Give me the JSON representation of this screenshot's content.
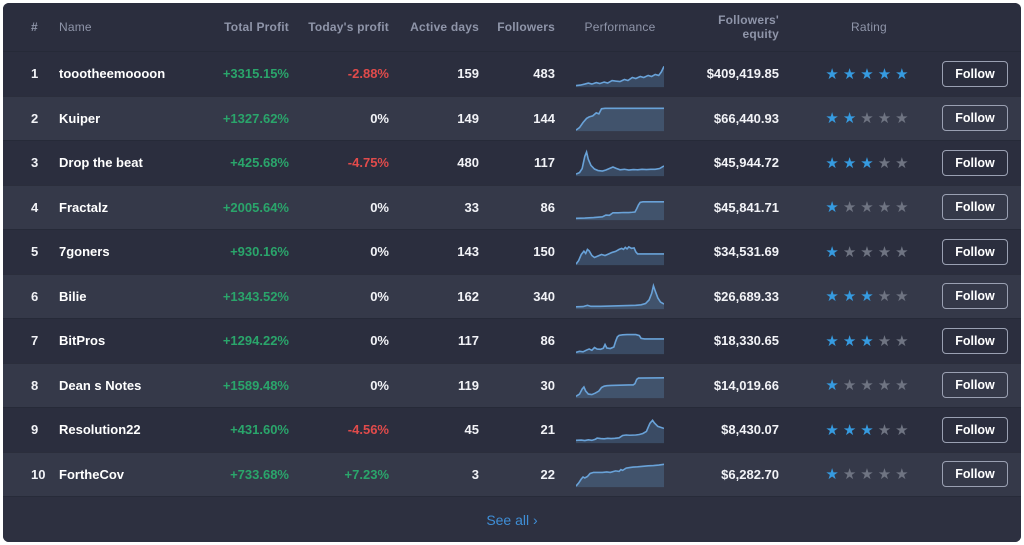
{
  "colors": {
    "panel_dark": "#2b2e3e",
    "row_light": "#353949",
    "green": "#2aa56b",
    "red": "#e14b4b",
    "star_blue": "#369be0",
    "star_gray": "#6f7482",
    "spark_line": "#69a2d8",
    "spark_fill": "#69a2d8",
    "link_blue": "#3f8ed6"
  },
  "table": {
    "columns": [
      "#",
      "Name",
      "Total Profit",
      "Today's profit",
      "Active days",
      "Followers",
      "Performance",
      "Followers' equity",
      "Rating"
    ],
    "follow_label": "Follow",
    "see_all_label": "See all ›",
    "rows": [
      {
        "rank": "1",
        "name": "toootheemoooon",
        "total_profit": "+3315.15%",
        "today_profit": "-2.88%",
        "today_type": "neg",
        "active_days": "159",
        "followers": "483",
        "equity": "$409,419.85",
        "rating": 5,
        "spark": [
          [
            0,
            6
          ],
          [
            5,
            8
          ],
          [
            10,
            12
          ],
          [
            14,
            16
          ],
          [
            18,
            12
          ],
          [
            23,
            18
          ],
          [
            27,
            14
          ],
          [
            32,
            20
          ],
          [
            36,
            16
          ],
          [
            41,
            26
          ],
          [
            45,
            24
          ],
          [
            50,
            22
          ],
          [
            55,
            30
          ],
          [
            59,
            26
          ],
          [
            64,
            38
          ],
          [
            68,
            34
          ],
          [
            73,
            42
          ],
          [
            77,
            38
          ],
          [
            82,
            46
          ],
          [
            86,
            42
          ],
          [
            90,
            50
          ],
          [
            94,
            46
          ],
          [
            97,
            60
          ],
          [
            100,
            82
          ]
        ]
      },
      {
        "rank": "2",
        "name": "Kuiper",
        "total_profit": "+1327.62%",
        "today_profit": "0%",
        "today_type": "zero",
        "active_days": "149",
        "followers": "144",
        "equity": "$66,440.93",
        "rating": 2,
        "spark": [
          [
            0,
            4
          ],
          [
            4,
            14
          ],
          [
            8,
            34
          ],
          [
            12,
            50
          ],
          [
            15,
            56
          ],
          [
            19,
            60
          ],
          [
            23,
            72
          ],
          [
            26,
            68
          ],
          [
            29,
            88
          ],
          [
            33,
            90
          ],
          [
            100,
            90
          ]
        ]
      },
      {
        "rank": "3",
        "name": "Drop the beat",
        "total_profit": "+425.68%",
        "today_profit": "-4.75%",
        "today_type": "neg",
        "active_days": "480",
        "followers": "117",
        "equity": "$45,944.72",
        "rating": 3,
        "spark": [
          [
            0,
            8
          ],
          [
            4,
            14
          ],
          [
            7,
            30
          ],
          [
            10,
            78
          ],
          [
            12,
            95
          ],
          [
            14,
            66
          ],
          [
            17,
            42
          ],
          [
            21,
            28
          ],
          [
            25,
            22
          ],
          [
            30,
            20
          ],
          [
            34,
            24
          ],
          [
            38,
            30
          ],
          [
            42,
            36
          ],
          [
            46,
            30
          ],
          [
            50,
            25
          ],
          [
            55,
            27
          ],
          [
            60,
            24
          ],
          [
            65,
            26
          ],
          [
            70,
            25
          ],
          [
            75,
            27
          ],
          [
            80,
            26
          ],
          [
            85,
            27
          ],
          [
            90,
            27
          ],
          [
            95,
            30
          ],
          [
            100,
            40
          ]
        ]
      },
      {
        "rank": "4",
        "name": "Fractalz",
        "total_profit": "+2005.64%",
        "today_profit": "0%",
        "today_type": "zero",
        "active_days": "33",
        "followers": "86",
        "equity": "$45,841.71",
        "rating": 1,
        "spark": [
          [
            0,
            7
          ],
          [
            10,
            8
          ],
          [
            20,
            10
          ],
          [
            30,
            13
          ],
          [
            34,
            20
          ],
          [
            38,
            19
          ],
          [
            42,
            29
          ],
          [
            48,
            29
          ],
          [
            54,
            30
          ],
          [
            60,
            30
          ],
          [
            64,
            31
          ],
          [
            67,
            32
          ],
          [
            69,
            45
          ],
          [
            71,
            60
          ],
          [
            73,
            70
          ],
          [
            76,
            72
          ],
          [
            100,
            72
          ]
        ]
      },
      {
        "rank": "5",
        "name": "7goners",
        "total_profit": "+930.16%",
        "today_profit": "0%",
        "today_type": "zero",
        "active_days": "143",
        "followers": "150",
        "equity": "$34,531.69",
        "rating": 1,
        "spark": [
          [
            0,
            4
          ],
          [
            3,
            18
          ],
          [
            6,
            42
          ],
          [
            9,
            55
          ],
          [
            11,
            46
          ],
          [
            13,
            62
          ],
          [
            15,
            56
          ],
          [
            18,
            38
          ],
          [
            21,
            30
          ],
          [
            25,
            36
          ],
          [
            29,
            42
          ],
          [
            33,
            38
          ],
          [
            37,
            44
          ],
          [
            41,
            50
          ],
          [
            45,
            54
          ],
          [
            49,
            62
          ],
          [
            52,
            66
          ],
          [
            54,
            62
          ],
          [
            56,
            70
          ],
          [
            58,
            64
          ],
          [
            60,
            72
          ],
          [
            63,
            66
          ],
          [
            66,
            68
          ],
          [
            68,
            52
          ],
          [
            70,
            44
          ],
          [
            74,
            44
          ],
          [
            100,
            44
          ]
        ]
      },
      {
        "rank": "6",
        "name": "Bilie",
        "total_profit": "+1343.52%",
        "today_profit": "0%",
        "today_type": "zero",
        "active_days": "162",
        "followers": "340",
        "equity": "$26,689.33",
        "rating": 3,
        "spark": [
          [
            0,
            9
          ],
          [
            8,
            10
          ],
          [
            13,
            15
          ],
          [
            17,
            11
          ],
          [
            28,
            11
          ],
          [
            38,
            12
          ],
          [
            48,
            13
          ],
          [
            58,
            14
          ],
          [
            68,
            15
          ],
          [
            74,
            17
          ],
          [
            79,
            22
          ],
          [
            83,
            36
          ],
          [
            86,
            62
          ],
          [
            88,
            92
          ],
          [
            90,
            72
          ],
          [
            93,
            44
          ],
          [
            96,
            28
          ],
          [
            100,
            20
          ]
        ]
      },
      {
        "rank": "7",
        "name": "BitPros",
        "total_profit": "+1294.22%",
        "today_profit": "0%",
        "today_type": "zero",
        "active_days": "117",
        "followers": "86",
        "equity": "$18,330.65",
        "rating": 3,
        "spark": [
          [
            0,
            7
          ],
          [
            4,
            11
          ],
          [
            8,
            9
          ],
          [
            12,
            16
          ],
          [
            15,
            20
          ],
          [
            18,
            15
          ],
          [
            21,
            26
          ],
          [
            24,
            20
          ],
          [
            28,
            19
          ],
          [
            31,
            23
          ],
          [
            33,
            38
          ],
          [
            35,
            24
          ],
          [
            39,
            22
          ],
          [
            43,
            28
          ],
          [
            45,
            50
          ],
          [
            47,
            68
          ],
          [
            49,
            74
          ],
          [
            53,
            76
          ],
          [
            58,
            77
          ],
          [
            68,
            77
          ],
          [
            72,
            73
          ],
          [
            74,
            62
          ],
          [
            78,
            60
          ],
          [
            100,
            60
          ]
        ]
      },
      {
        "rank": "8",
        "name": "Dean s Notes",
        "total_profit": "+1589.48%",
        "today_profit": "0%",
        "today_type": "zero",
        "active_days": "119",
        "followers": "30",
        "equity": "$14,019.66",
        "rating": 1,
        "spark": [
          [
            0,
            7
          ],
          [
            4,
            16
          ],
          [
            7,
            36
          ],
          [
            9,
            44
          ],
          [
            11,
            28
          ],
          [
            14,
            16
          ],
          [
            18,
            14
          ],
          [
            22,
            20
          ],
          [
            26,
            28
          ],
          [
            29,
            42
          ],
          [
            32,
            47
          ],
          [
            35,
            49
          ],
          [
            40,
            50
          ],
          [
            50,
            51
          ],
          [
            60,
            52
          ],
          [
            65,
            52
          ],
          [
            67,
            57
          ],
          [
            69,
            74
          ],
          [
            71,
            79
          ],
          [
            100,
            80
          ]
        ]
      },
      {
        "rank": "9",
        "name": "Resolution22",
        "total_profit": "+431.60%",
        "today_profit": "-4.56%",
        "today_type": "neg",
        "active_days": "45",
        "followers": "21",
        "equity": "$8,430.07",
        "rating": 3,
        "spark": [
          [
            0,
            11
          ],
          [
            6,
            12
          ],
          [
            10,
            10
          ],
          [
            14,
            13
          ],
          [
            18,
            11
          ],
          [
            22,
            15
          ],
          [
            24,
            20
          ],
          [
            28,
            18
          ],
          [
            32,
            17
          ],
          [
            36,
            19
          ],
          [
            40,
            18
          ],
          [
            44,
            19
          ],
          [
            49,
            21
          ],
          [
            53,
            30
          ],
          [
            57,
            32
          ],
          [
            61,
            31
          ],
          [
            68,
            32
          ],
          [
            72,
            34
          ],
          [
            76,
            38
          ],
          [
            80,
            46
          ],
          [
            84,
            78
          ],
          [
            87,
            90
          ],
          [
            89,
            80
          ],
          [
            93,
            66
          ],
          [
            100,
            58
          ]
        ]
      },
      {
        "rank": "10",
        "name": "FortheCov",
        "total_profit": "+733.68%",
        "today_profit": "+7.23%",
        "today_type": "pos",
        "active_days": "3",
        "followers": "22",
        "equity": "$6,282.70",
        "rating": 1,
        "spark": [
          [
            0,
            4
          ],
          [
            3,
            16
          ],
          [
            6,
            32
          ],
          [
            8,
            40
          ],
          [
            10,
            36
          ],
          [
            13,
            42
          ],
          [
            16,
            54
          ],
          [
            20,
            58
          ],
          [
            25,
            58
          ],
          [
            30,
            58
          ],
          [
            35,
            60
          ],
          [
            39,
            58
          ],
          [
            43,
            62
          ],
          [
            45,
            64
          ],
          [
            49,
            62
          ],
          [
            51,
            69
          ],
          [
            53,
            66
          ],
          [
            57,
            75
          ],
          [
            61,
            77
          ],
          [
            65,
            79
          ],
          [
            70,
            80
          ],
          [
            76,
            82
          ],
          [
            82,
            84
          ],
          [
            88,
            85
          ],
          [
            94,
            87
          ],
          [
            100,
            90
          ]
        ]
      }
    ]
  }
}
